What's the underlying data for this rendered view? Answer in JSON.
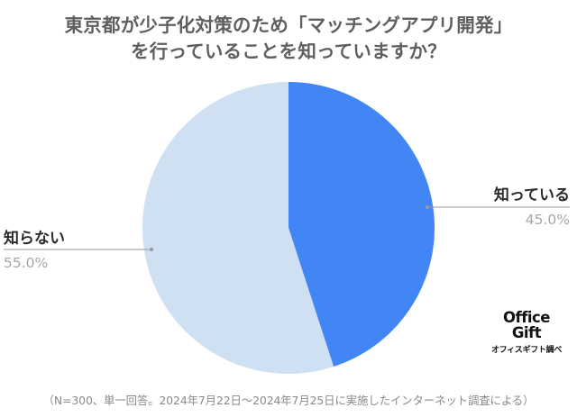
{
  "chart_data": {
    "type": "pie",
    "title": "東京都が少子化対策のため「マッチングアプリ開発」を行っていることを知っていますか？",
    "title_lines": [
      "東京都が少子化対策のため「マッチングアプリ開発」",
      "を行っていることを知っていますか？"
    ],
    "slices": [
      {
        "label": "知っている",
        "value": 45.0,
        "value_label": "45.0%",
        "color": "#4285f4"
      },
      {
        "label": "知らない",
        "value": 55.0,
        "value_label": "55.0%",
        "color": "#cfe0f3"
      }
    ],
    "start_angle": "12 o'clock",
    "direction": "clockwise",
    "legend": "none",
    "footnote": "（N=300、単一回答。2024年7月22日～2024年7月25日に実施したインターネット調査による）"
  },
  "logo": {
    "line1": "Office",
    "line2": "Gift",
    "subtitle": "オフィスギフト調べ"
  },
  "colors": {
    "title": "#5f5f5f",
    "leader_line": "#999999",
    "value_label": "#a8a8a8",
    "name_label": "#2a2a2a",
    "footnote": "#8a8a8a"
  }
}
